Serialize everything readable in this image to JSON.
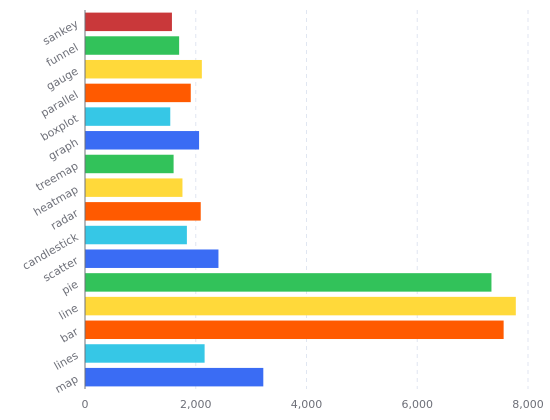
{
  "chart_data": {
    "type": "bar",
    "orientation": "horizontal",
    "categories": [
      "map",
      "lines",
      "bar",
      "line",
      "pie",
      "scatter",
      "candlestick",
      "radar",
      "heatmap",
      "treemap",
      "graph",
      "boxplot",
      "parallel",
      "gauge",
      "funnel",
      "sankey"
    ],
    "values": [
      3220,
      2160,
      7560,
      7780,
      7340,
      2410,
      1840,
      2090,
      1760,
      1600,
      2060,
      1540,
      1910,
      2110,
      1700,
      1570
    ],
    "colors": [
      "#3a6cf4",
      "#36c7e6",
      "#ff5a00",
      "#ffd93a",
      "#32c25a",
      "#3a6cf4",
      "#36c7e6",
      "#ff5a00",
      "#ffd93a",
      "#32c25a",
      "#3a6cf4",
      "#36c7e6",
      "#ff5a00",
      "#ffd93a",
      "#32c25a",
      "#c9383a"
    ],
    "xlim": [
      0,
      8000
    ],
    "xticks": [
      0,
      2000,
      4000,
      6000,
      8000
    ],
    "xtick_labels": [
      "0",
      "2,000",
      "4,000",
      "6,000",
      "8,000"
    ],
    "grid": "vertical dashed",
    "title": "",
    "xlabel": "",
    "ylabel": ""
  }
}
